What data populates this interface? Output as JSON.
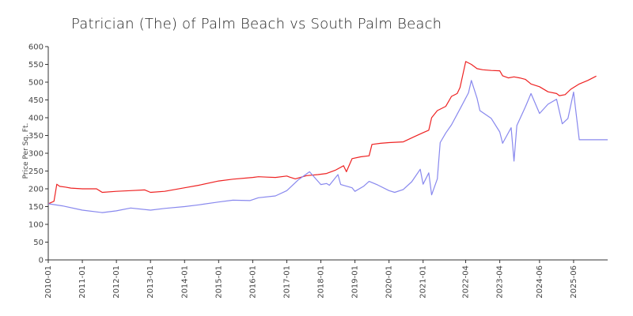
{
  "chart_data": {
    "type": "line",
    "title": "Patrician (The) of Palm Beach vs South Palm Beach",
    "xlabel": "",
    "ylabel": "Price Per Sq. Ft.",
    "ylim": [
      0,
      600
    ],
    "yticks": [
      0,
      50,
      100,
      150,
      200,
      250,
      300,
      350,
      400,
      450,
      500,
      550,
      600
    ],
    "xlim": [
      "2010-01",
      "2026-06"
    ],
    "xticks": [
      "2010-01",
      "2011-01",
      "2012-01",
      "2013-01",
      "2014-01",
      "2015-01",
      "2016-01",
      "2017-01",
      "2018-01",
      "2019-01",
      "2020-01",
      "2021-01",
      "2022-04",
      "2023-04",
      "2024-06",
      "2025-06"
    ],
    "grid": false,
    "legend": "none",
    "series": [
      {
        "color": "#ee2222",
        "points": [
          [
            "2010-01",
            158
          ],
          [
            "2010-03",
            165
          ],
          [
            "2010-04",
            213
          ],
          [
            "2010-05",
            207
          ],
          [
            "2010-07",
            205
          ],
          [
            "2010-09",
            202
          ],
          [
            "2011-01",
            200
          ],
          [
            "2011-06",
            200
          ],
          [
            "2011-08",
            190
          ],
          [
            "2012-01",
            193
          ],
          [
            "2012-06",
            195
          ],
          [
            "2012-11",
            197
          ],
          [
            "2013-01",
            190
          ],
          [
            "2013-06",
            193
          ],
          [
            "2014-01",
            203
          ],
          [
            "2014-06",
            210
          ],
          [
            "2015-01",
            222
          ],
          [
            "2015-06",
            227
          ],
          [
            "2016-01",
            232
          ],
          [
            "2016-03",
            234
          ],
          [
            "2016-06",
            233
          ],
          [
            "2016-09",
            232
          ],
          [
            "2017-01",
            236
          ],
          [
            "2017-02",
            233
          ],
          [
            "2017-04",
            228
          ],
          [
            "2017-08",
            237
          ],
          [
            "2017-12",
            240
          ],
          [
            "2018-03",
            243
          ],
          [
            "2018-06",
            252
          ],
          [
            "2018-09",
            265
          ],
          [
            "2018-10",
            248
          ],
          [
            "2018-12",
            285
          ],
          [
            "2019-03",
            290
          ],
          [
            "2019-06",
            293
          ],
          [
            "2019-07",
            325
          ],
          [
            "2019-10",
            328
          ],
          [
            "2020-01",
            330
          ],
          [
            "2020-06",
            332
          ],
          [
            "2020-10",
            347
          ],
          [
            "2021-01",
            358
          ],
          [
            "2021-03",
            365
          ],
          [
            "2021-04",
            400
          ],
          [
            "2021-06",
            420
          ],
          [
            "2021-09",
            432
          ],
          [
            "2021-11",
            460
          ],
          [
            "2022-01",
            468
          ],
          [
            "2022-02",
            485
          ],
          [
            "2022-04",
            558
          ],
          [
            "2022-06",
            550
          ],
          [
            "2022-08",
            538
          ],
          [
            "2022-10",
            535
          ],
          [
            "2023-01",
            533
          ],
          [
            "2023-04",
            532
          ],
          [
            "2023-05",
            518
          ],
          [
            "2023-07",
            512
          ],
          [
            "2023-09",
            515
          ],
          [
            "2023-11",
            512
          ],
          [
            "2024-01",
            508
          ],
          [
            "2024-03",
            495
          ],
          [
            "2024-06",
            487
          ],
          [
            "2024-09",
            473
          ],
          [
            "2024-12",
            468
          ],
          [
            "2025-01",
            462
          ],
          [
            "2025-03",
            465
          ],
          [
            "2025-05",
            480
          ],
          [
            "2025-08",
            495
          ],
          [
            "2025-11",
            505
          ],
          [
            "2026-02",
            517
          ]
        ]
      },
      {
        "color": "#8888ee",
        "points": [
          [
            "2010-01",
            158
          ],
          [
            "2010-06",
            152
          ],
          [
            "2011-01",
            140
          ],
          [
            "2011-08",
            133
          ],
          [
            "2012-01",
            138
          ],
          [
            "2012-06",
            146
          ],
          [
            "2013-01",
            140
          ],
          [
            "2013-06",
            145
          ],
          [
            "2014-01",
            150
          ],
          [
            "2014-06",
            155
          ],
          [
            "2015-01",
            163
          ],
          [
            "2015-06",
            168
          ],
          [
            "2015-12",
            167
          ],
          [
            "2016-03",
            175
          ],
          [
            "2016-09",
            180
          ],
          [
            "2017-01",
            195
          ],
          [
            "2017-05",
            225
          ],
          [
            "2017-09",
            248
          ],
          [
            "2018-01",
            212
          ],
          [
            "2018-03",
            215
          ],
          [
            "2018-04",
            210
          ],
          [
            "2018-07",
            240
          ],
          [
            "2018-08",
            212
          ],
          [
            "2018-12",
            203
          ],
          [
            "2019-01",
            193
          ],
          [
            "2019-04",
            207
          ],
          [
            "2019-06",
            221
          ],
          [
            "2019-09",
            211
          ],
          [
            "2020-01",
            195
          ],
          [
            "2020-03",
            190
          ],
          [
            "2020-06",
            198
          ],
          [
            "2020-09",
            220
          ],
          [
            "2020-12",
            255
          ],
          [
            "2021-01",
            213
          ],
          [
            "2021-03",
            245
          ],
          [
            "2021-04",
            183
          ],
          [
            "2021-06",
            228
          ],
          [
            "2021-07",
            330
          ],
          [
            "2021-09",
            357
          ],
          [
            "2021-11",
            380
          ],
          [
            "2022-02",
            425
          ],
          [
            "2022-05",
            470
          ],
          [
            "2022-06",
            505
          ],
          [
            "2022-08",
            455
          ],
          [
            "2022-09",
            420
          ],
          [
            "2023-01",
            398
          ],
          [
            "2023-04",
            360
          ],
          [
            "2023-05",
            328
          ],
          [
            "2023-08",
            372
          ],
          [
            "2023-09",
            278
          ],
          [
            "2023-10",
            378
          ],
          [
            "2024-01",
            430
          ],
          [
            "2024-03",
            468
          ],
          [
            "2024-06",
            412
          ],
          [
            "2024-09",
            438
          ],
          [
            "2024-12",
            452
          ],
          [
            "2025-02",
            383
          ],
          [
            "2025-04",
            398
          ],
          [
            "2025-06",
            472
          ],
          [
            "2025-08",
            338
          ],
          [
            "2026-01",
            338
          ],
          [
            "2026-06",
            338
          ]
        ]
      }
    ]
  }
}
